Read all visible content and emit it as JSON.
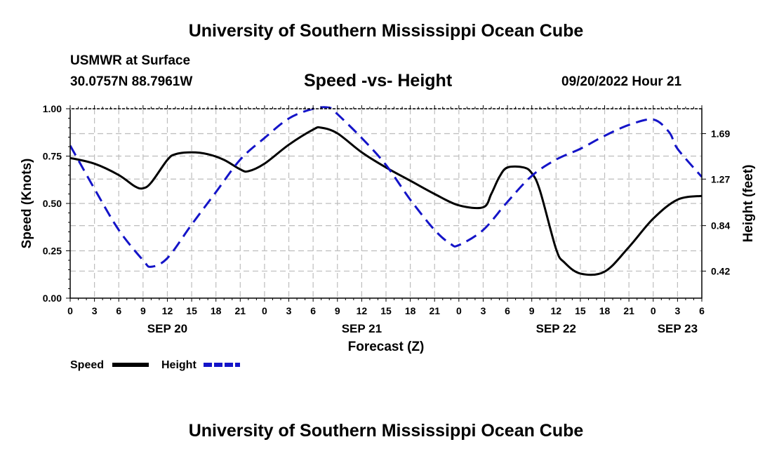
{
  "header": {
    "title": "University of Southern Mississippi Ocean Cube",
    "station_name": "USMWR at Surface",
    "station_coords": "30.0757N  88.7961W",
    "chart_title": "Speed -vs- Height",
    "timestamp": "09/20/2022 Hour 21"
  },
  "footer": {
    "title": "University of Southern Mississippi Ocean Cube"
  },
  "chart_data": {
    "type": "line",
    "title": "Speed -vs- Height",
    "xlabel": "Forecast (Z)",
    "ylabel_left": "Speed (Knots)",
    "ylabel_right": "Height (feet)",
    "x_unit": "forecast hours from SEP 20 00Z",
    "xlim": [
      0,
      78
    ],
    "x_ticks": [
      0,
      3,
      6,
      9,
      12,
      15,
      18,
      21,
      24,
      27,
      30,
      33,
      36,
      39,
      42,
      45,
      48,
      51,
      54,
      57,
      60,
      63,
      66,
      69,
      72,
      75,
      78
    ],
    "x_tick_labels": [
      "0",
      "3",
      "6",
      "9",
      "12",
      "15",
      "18",
      "21",
      "0",
      "3",
      "6",
      "9",
      "12",
      "15",
      "18",
      "21",
      "0",
      "3",
      "6",
      "9",
      "12",
      "15",
      "18",
      "21",
      "0",
      "3",
      "6"
    ],
    "date_labels": [
      {
        "x": 12,
        "label": "SEP 20"
      },
      {
        "x": 36,
        "label": "SEP 21"
      },
      {
        "x": 60,
        "label": "SEP 22"
      },
      {
        "x": 75,
        "label": "SEP 23"
      }
    ],
    "left_axis": {
      "ylim": [
        0,
        1
      ],
      "ticks": [
        0,
        0.25,
        0.5,
        0.75,
        1
      ],
      "tick_labels": [
        "0.00",
        "0.25",
        "0.50",
        "0.75",
        "1.00"
      ]
    },
    "right_axis": {
      "ylim": [
        0.17,
        1.92
      ],
      "ticks": [
        0.42,
        0.84,
        1.27,
        1.69
      ],
      "tick_labels": [
        "0.42",
        "0.84",
        "1.27",
        "1.69"
      ]
    },
    "grid": true,
    "legend": {
      "position": "bottom-left",
      "entries": [
        {
          "label": "Speed",
          "color": "#000000",
          "style": "solid"
        },
        {
          "label": "Height",
          "color": "#1414c8",
          "style": "dashed"
        }
      ]
    },
    "series": [
      {
        "name": "Speed",
        "axis": "left",
        "color": "#000000",
        "style": "solid",
        "x": [
          0,
          3,
          6,
          8,
          9,
          10,
          12,
          13,
          15,
          17,
          19,
          21,
          22,
          24,
          27,
          30,
          31,
          33,
          36,
          39,
          42,
          45,
          48,
          51,
          52,
          53,
          54,
          56,
          57,
          58,
          60,
          61,
          63,
          66,
          69,
          72,
          75,
          78
        ],
        "y": [
          0.74,
          0.71,
          0.65,
          0.59,
          0.58,
          0.61,
          0.73,
          0.76,
          0.77,
          0.76,
          0.73,
          0.68,
          0.67,
          0.71,
          0.81,
          0.89,
          0.9,
          0.87,
          0.77,
          0.69,
          0.62,
          0.55,
          0.49,
          0.48,
          0.55,
          0.64,
          0.69,
          0.69,
          0.66,
          0.57,
          0.26,
          0.19,
          0.13,
          0.14,
          0.27,
          0.42,
          0.52,
          0.54
        ]
      },
      {
        "name": "Height",
        "axis": "right",
        "color": "#1414c8",
        "style": "dashed",
        "x": [
          0,
          3,
          6,
          9,
          10,
          12,
          15,
          18,
          21,
          24,
          27,
          30,
          32,
          33,
          36,
          39,
          42,
          45,
          47,
          48,
          51,
          54,
          57,
          60,
          63,
          66,
          69,
          72,
          74,
          75,
          78
        ],
        "y": [
          1.58,
          1.18,
          0.8,
          0.52,
          0.46,
          0.54,
          0.85,
          1.15,
          1.45,
          1.65,
          1.83,
          1.92,
          1.93,
          1.87,
          1.65,
          1.4,
          1.08,
          0.8,
          0.67,
          0.66,
          0.8,
          1.06,
          1.3,
          1.45,
          1.55,
          1.67,
          1.77,
          1.82,
          1.7,
          1.55,
          1.29
        ]
      }
    ]
  }
}
